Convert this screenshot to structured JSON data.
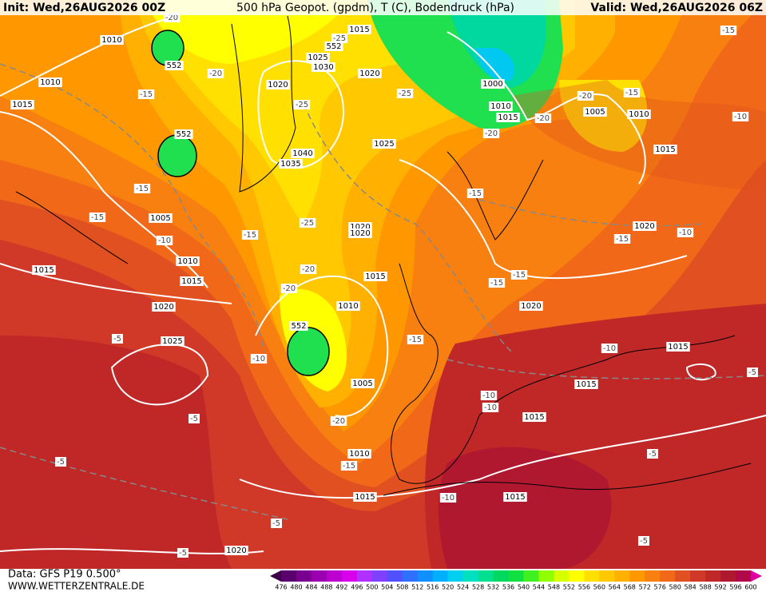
{
  "header": {
    "init": "Init: Wed,26AUG2026 00Z",
    "title": "500 hPa Geopot. (gpdm), T (C), Bodendruck (hPa)",
    "valid": "Valid: Wed,26AUG2026 06Z"
  },
  "footer": {
    "data": "Data: GFS P19 0.500°",
    "site": "WWW.WETTERZENTRALE.DE"
  },
  "legend": {
    "labels": [
      476,
      480,
      484,
      488,
      492,
      496,
      500,
      504,
      508,
      512,
      516,
      520,
      524,
      528,
      532,
      536,
      540,
      544,
      548,
      552,
      556,
      560,
      564,
      568,
      572,
      576,
      580,
      584,
      588,
      592,
      596,
      600
    ],
    "colors": [
      "#3c0046",
      "#5a006e",
      "#7a0090",
      "#9a00b0",
      "#bb00d0",
      "#d800ea",
      "#b030ff",
      "#8040ff",
      "#5050ff",
      "#3070ff",
      "#1090ff",
      "#00b0ff",
      "#00d0f0",
      "#00e0c0",
      "#00e090",
      "#00d860",
      "#10e040",
      "#40f020",
      "#90ff00",
      "#d8ff00",
      "#ffff00",
      "#ffe000",
      "#ffc800",
      "#ffb000",
      "#ff9800",
      "#f88010",
      "#f06818",
      "#e05020",
      "#d03828",
      "#c02828",
      "#b01830",
      "#b00848",
      "#e000a0"
    ]
  },
  "isobar_labels": [
    "1010",
    "1015",
    "1010",
    "1015",
    "1025",
    "1030",
    "1020",
    "1020",
    "1000",
    "1010",
    "1015",
    "1005",
    "1010",
    "1015",
    "1025",
    "1040",
    "1035",
    "1005",
    "1020",
    "1020",
    "1020",
    "1010",
    "1015",
    "1015",
    "1015",
    "1020",
    "1010",
    "1020",
    "1025",
    "1015",
    "1005",
    "1015",
    "1015",
    "1010",
    "1015",
    "1015",
    "1020"
  ],
  "temp_labels": [
    "-20",
    "-25",
    "-20",
    "-15",
    "-25",
    "-25",
    "-20",
    "-15",
    "-15",
    "-20",
    "-20",
    "-10",
    "-15",
    "-15",
    "-10",
    "-15",
    "-25",
    "-15",
    "-10",
    "-15",
    "-20",
    "-20",
    "-15",
    "-15",
    "-15",
    "-5",
    "-10",
    "-10",
    "-5",
    "-5",
    "-20",
    "-10",
    "-10",
    "-15",
    "-5",
    "-5",
    "-10",
    "-5",
    "-5",
    "-5"
  ],
  "height_labels": [
    "552",
    "552",
    "552",
    "552"
  ]
}
